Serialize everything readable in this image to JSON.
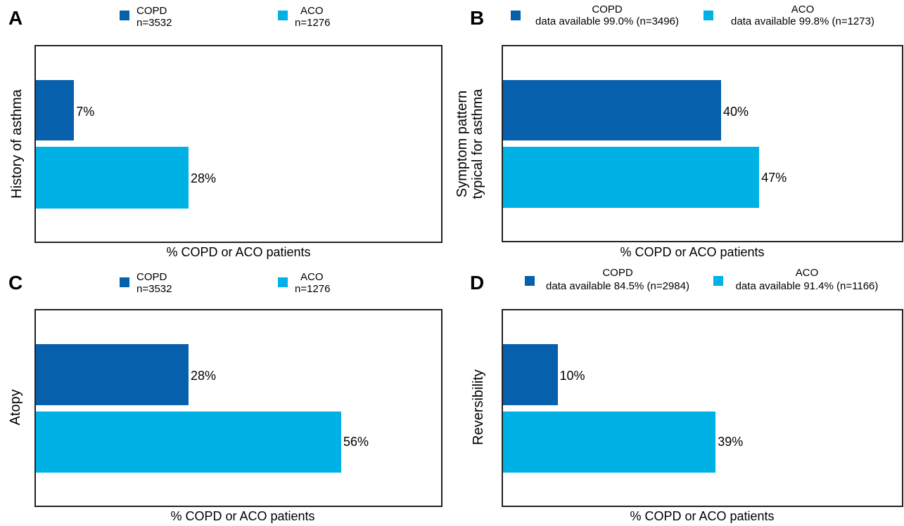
{
  "colors": {
    "copd": "#0760ab",
    "aco": "#00b1e6"
  },
  "chart_data": [
    {
      "panel": "A",
      "type": "bar",
      "orientation": "horizontal",
      "ylabel": "History of asthma",
      "xlabel": "% COPD or ACO patients",
      "xlim": [
        0,
        100
      ],
      "legend": [
        {
          "name": "COPD",
          "detail": "n=3532"
        },
        {
          "name": "ACO",
          "detail": "n=1276"
        }
      ],
      "series": [
        {
          "name": "COPD",
          "values": [
            7
          ],
          "labels": [
            "7%"
          ]
        },
        {
          "name": "ACO",
          "values": [
            28
          ],
          "labels": [
            "28%"
          ]
        }
      ]
    },
    {
      "panel": "B",
      "type": "bar",
      "orientation": "horizontal",
      "ylabel_lines": [
        "Symptom pattern",
        "typical for asthma"
      ],
      "xlabel": "% COPD or ACO patients",
      "xlim": [
        0,
        100
      ],
      "legend": [
        {
          "name": "COPD",
          "detail": "data available 99.0% (n=3496)"
        },
        {
          "name": "ACO",
          "detail": "data available 99.8% (n=1273)"
        }
      ],
      "series": [
        {
          "name": "COPD",
          "values": [
            40
          ],
          "labels": [
            "40%"
          ]
        },
        {
          "name": "ACO",
          "values": [
            47
          ],
          "labels": [
            "47%"
          ]
        }
      ]
    },
    {
      "panel": "C",
      "type": "bar",
      "orientation": "horizontal",
      "ylabel": "Atopy",
      "xlabel": "% COPD or ACO patients",
      "xlim": [
        0,
        100
      ],
      "legend": [
        {
          "name": "COPD",
          "detail": "n=3532"
        },
        {
          "name": "ACO",
          "detail": "n=1276"
        }
      ],
      "series": [
        {
          "name": "COPD",
          "values": [
            28
          ],
          "labels": [
            "28%"
          ]
        },
        {
          "name": "ACO",
          "values": [
            56
          ],
          "labels": [
            "56%"
          ]
        }
      ]
    },
    {
      "panel": "D",
      "type": "bar",
      "orientation": "horizontal",
      "ylabel": "Reversibility",
      "xlabel": "% COPD or ACO patients",
      "xlim": [
        0,
        100
      ],
      "legend": [
        {
          "name": "COPD",
          "detail": "data available 84.5% (n=2984)"
        },
        {
          "name": "ACO",
          "detail": "data available 91.4% (n=1166)"
        }
      ],
      "series": [
        {
          "name": "COPD",
          "values": [
            10
          ],
          "labels": [
            "10%"
          ]
        },
        {
          "name": "ACO",
          "values": [
            39
          ],
          "labels": [
            "39%"
          ]
        }
      ]
    }
  ]
}
